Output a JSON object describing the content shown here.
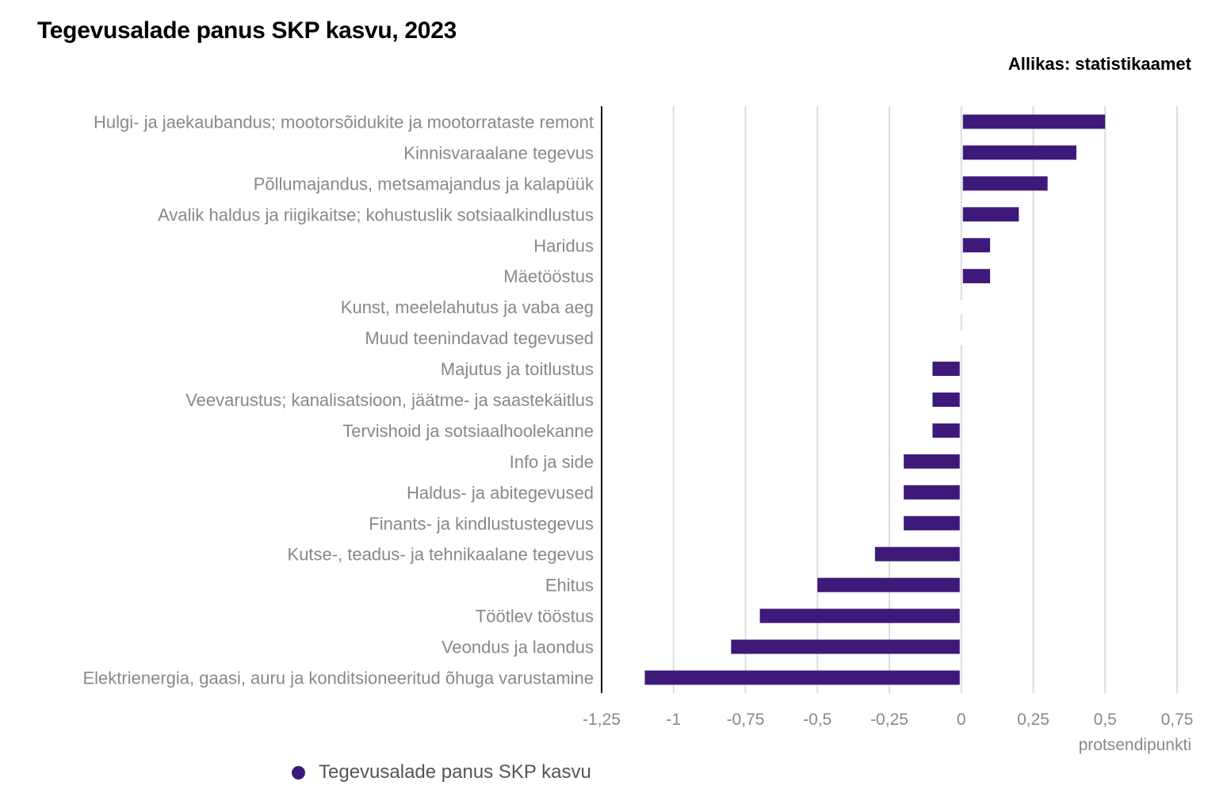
{
  "chart_data": {
    "type": "bar",
    "orientation": "horizontal",
    "title": "Tegevusalade panus SKP kasvu, 2023",
    "source": "Allikas: statistikaamet",
    "xlabel": "protsendipunkti",
    "xlim": [
      -1.25,
      0.75
    ],
    "xticks": [
      -1.25,
      -1,
      -0.75,
      -0.5,
      -0.25,
      0,
      0.25,
      0.5,
      0.75
    ],
    "xtick_labels": [
      "-1,25",
      "-1",
      "-0,75",
      "-0,5",
      "-0,25",
      "0",
      "0,25",
      "0,5",
      "0,75"
    ],
    "grid": true,
    "legend_position": "bottom",
    "categories": [
      "Hulgi- ja jaekaubandus; mootorsõidukite ja mootorrataste remont",
      "Kinnisvaraalane tegevus",
      "Põllumajandus, metsamajandus ja kalapüük",
      "Avalik haldus ja riigikaitse; kohustuslik sotsiaalkindlustus",
      "Haridus",
      "Mäetööstus",
      "Kunst, meelelahutus ja vaba aeg",
      "Muud teenindavad tegevused",
      "Majutus ja toitlustus",
      "Veevarustus; kanalisatsioon, jäätme- ja saastekäitlus",
      "Tervishoid ja sotsiaalhoolekanne",
      "Info ja side",
      "Haldus- ja abitegevused",
      "Finants- ja kindlustustegevus",
      "Kutse-, teadus- ja tehnikaalane tegevus",
      "Ehitus",
      "Töötlev tööstus",
      "Veondus ja laondus",
      "Elektrienergia, gaasi, auru ja konditsioneeritud õhuga varustamine"
    ],
    "series": [
      {
        "name": "Tegevusalade panus SKP kasvu",
        "color": "#3d1a7a",
        "values": [
          0.5,
          0.4,
          0.3,
          0.2,
          0.1,
          0.1,
          0,
          0,
          -0.1,
          -0.1,
          -0.1,
          -0.2,
          -0.2,
          -0.2,
          -0.3,
          -0.5,
          -0.7,
          -0.8,
          -1.1
        ]
      }
    ]
  }
}
